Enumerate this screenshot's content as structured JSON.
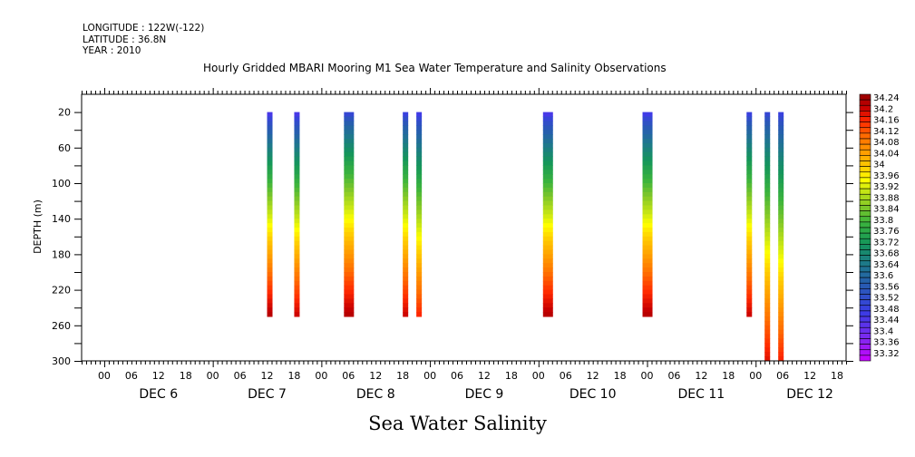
{
  "header": {
    "longitude": "LONGITUDE : 122W(-122)",
    "latitude": "LATITUDE : 36.8N",
    "year": "YEAR : 2010"
  },
  "chart_data": {
    "type": "heatmap",
    "title": "Hourly Gridded MBARI Mooring M1 Sea Water Temperature and Salinity Observations",
    "xlabel": "Sea Water Salinity",
    "ylabel": "DEPTH (m)",
    "xlim_hours_from_dec6_00": [
      -5,
      164
    ],
    "ylim": [
      300,
      0
    ],
    "y_ticks": [
      20,
      60,
      100,
      140,
      180,
      220,
      260,
      300
    ],
    "x_hour_ticks": [
      "00",
      "06",
      "12",
      "18"
    ],
    "day_labels": [
      "DEC  6",
      "DEC  7",
      "DEC  8",
      "DEC  9",
      "DEC 10",
      "DEC 11",
      "DEC 12"
    ],
    "colorbar": {
      "labels": [
        "34.24",
        "34.2",
        "34.16",
        "34.12",
        "34.08",
        "34.04",
        "34",
        "33.96",
        "33.92",
        "33.88",
        "33.84",
        "33.8",
        "33.76",
        "33.72",
        "33.68",
        "33.64",
        "33.6",
        "33.56",
        "33.52",
        "33.48",
        "33.44",
        "33.4",
        "33.36",
        "33.32"
      ],
      "min": 33.32,
      "max": 34.24
    },
    "profiles": [
      {
        "time": "DEC 7 12:00",
        "hour": 36,
        "duration_h": 1,
        "depth_top": 20,
        "depth_bottom": 250,
        "salinity_top": 33.47,
        "salinity_bottom": 34.22
      },
      {
        "time": "DEC 7 18:00",
        "hour": 42,
        "duration_h": 1,
        "depth_top": 20,
        "depth_bottom": 250,
        "salinity_top": 33.47,
        "salinity_bottom": 34.2
      },
      {
        "time": "DEC 8 05:00",
        "hour": 53,
        "duration_h": 2,
        "depth_top": 20,
        "depth_bottom": 250,
        "salinity_top": 33.52,
        "salinity_bottom": 34.22
      },
      {
        "time": "DEC 8 18:00",
        "hour": 66,
        "duration_h": 1,
        "depth_top": 20,
        "depth_bottom": 250,
        "salinity_top": 33.5,
        "salinity_bottom": 34.2
      },
      {
        "time": "DEC 8 21:00",
        "hour": 69,
        "duration_h": 1,
        "depth_top": 20,
        "depth_bottom": 250,
        "salinity_top": 33.48,
        "salinity_bottom": 34.16
      },
      {
        "time": "DEC 10 01:00",
        "hour": 97,
        "duration_h": 2,
        "depth_top": 20,
        "depth_bottom": 250,
        "salinity_top": 33.47,
        "salinity_bottom": 34.22
      },
      {
        "time": "DEC 10 23:00",
        "hour": 119,
        "duration_h": 2,
        "depth_top": 20,
        "depth_bottom": 250,
        "salinity_top": 33.48,
        "salinity_bottom": 34.22
      },
      {
        "time": "DEC 11 22:00",
        "hour": 142,
        "duration_h": 1,
        "depth_top": 20,
        "depth_bottom": 250,
        "salinity_top": 33.5,
        "salinity_bottom": 34.2
      },
      {
        "time": "DEC 12 02:00",
        "hour": 146,
        "duration_h": 1,
        "depth_top": 20,
        "depth_bottom": 300,
        "salinity_top": 33.52,
        "salinity_bottom": 34.18
      },
      {
        "time": "DEC 12 05:00",
        "hour": 149,
        "duration_h": 1,
        "depth_top": 20,
        "depth_bottom": 300,
        "salinity_top": 33.5,
        "salinity_bottom": 34.16
      }
    ]
  }
}
